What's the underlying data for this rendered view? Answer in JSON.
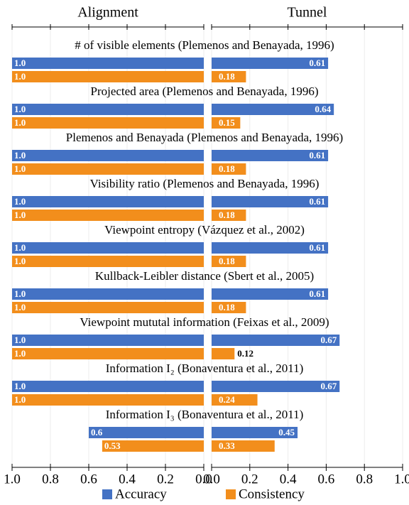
{
  "chart_data": {
    "type": "bar",
    "orientation": "horizontal",
    "grid": true,
    "categories": [
      "# of visible elements (Plemenos and Benayada, 1996)",
      "Projected area (Plemenos and Benayada, 1996)",
      "Plemenos and Benayada (Plemenos and Benayada, 1996)",
      "Visibility ratio (Plemenos and Benayada, 1996)",
      "Viewpoint entropy (Vázquez et al., 2002)",
      "Kullback-Leibler distance (Sbert et al., 2005)",
      "Viewpoint mututal information  (Feixas et al., 2009)",
      "Information I₂ (Bonaventura et al., 2011)",
      "Information I₃ (Bonaventura et al., 2011)"
    ],
    "series": [
      {
        "name": "Accuracy",
        "color": "#4472c4"
      },
      {
        "name": "Consistency",
        "color": "#f28e1c"
      }
    ],
    "panels": [
      {
        "title": "Alignment",
        "xlim": [
          1.0,
          0
        ],
        "xticks": [
          {
            "value": 1,
            "label": "1.0"
          },
          0.8,
          0.6,
          0.4,
          0.2,
          {
            "value": 0,
            "label": "0.0"
          }
        ],
        "series": [
          {
            "values": [
              1,
              1,
              1,
              1,
              1,
              1,
              1,
              1,
              0.6
            ],
            "value_labels": [
              "1.0",
              "1.0",
              "1.0",
              "1.0",
              "1.0",
              "1.0",
              "1.0",
              "1.0",
              "0.6"
            ]
          },
          {
            "values": [
              1,
              1,
              1,
              1,
              1,
              1,
              1,
              1,
              0.53
            ],
            "value_labels": [
              "1.0",
              "1.0",
              "1.0",
              "1.0",
              "1.0",
              "1.0",
              "1.0",
              "1.0",
              "0.53"
            ]
          }
        ]
      },
      {
        "title": "Tunnel",
        "xlim": [
          0,
          1.0
        ],
        "xticks": [
          {
            "value": 0,
            "label": "0.0"
          },
          0.2,
          0.4,
          0.6,
          0.8,
          {
            "value": 1,
            "label": "1.0"
          }
        ],
        "series": [
          {
            "values": [
              0.61,
              0.64,
              0.61,
              0.61,
              0.61,
              0.61,
              0.67,
              0.67,
              0.45
            ]
          },
          {
            "values": [
              0.18,
              0.15,
              0.18,
              0.18,
              0.18,
              0.18,
              0.12,
              0.24,
              0.33
            ]
          }
        ]
      }
    ]
  }
}
